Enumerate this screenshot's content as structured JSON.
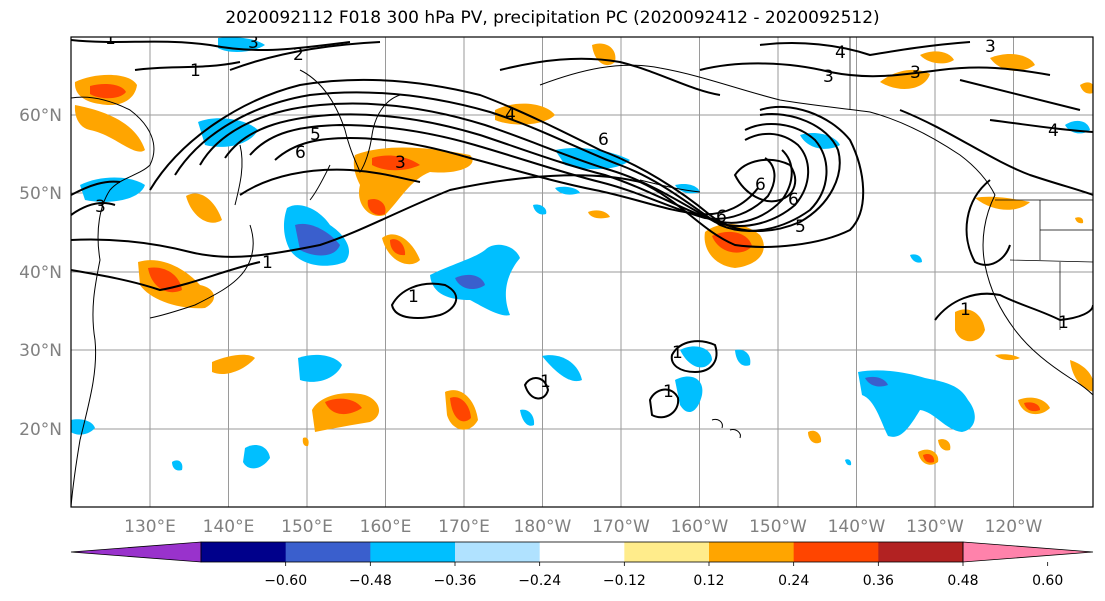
{
  "title": "2020092112 F018 300 hPa PV, precipitation PC (2020092412 - 2020092512)",
  "map": {
    "projection": "PlateCarree (Pacific-centered)",
    "grid": true,
    "lon_ticks": [
      "130°E",
      "140°E",
      "150°E",
      "160°E",
      "170°E",
      "180°W",
      "170°W",
      "160°W",
      "150°W",
      "140°W",
      "130°W",
      "120°W"
    ],
    "lat_ticks": [
      "60°N",
      "50°N",
      "40°N",
      "30°N",
      "20°N"
    ],
    "contour_labels": [
      "1",
      "2",
      "3",
      "4",
      "5",
      "6"
    ]
  },
  "colorbar": {
    "ticks": [
      "−0.60",
      "−0.48",
      "−0.36",
      "−0.24",
      "−0.12",
      "0.12",
      "0.24",
      "0.36",
      "0.48",
      "0.60"
    ],
    "colors": [
      "#9932cc",
      "#00008b",
      "#3a5fcd",
      "#00bfff",
      "#b0e2ff",
      "#ffffff",
      "#ffec8b",
      "#ffa500",
      "#ff4500",
      "#b22222",
      "#ff82ab"
    ],
    "extend": "both"
  }
}
